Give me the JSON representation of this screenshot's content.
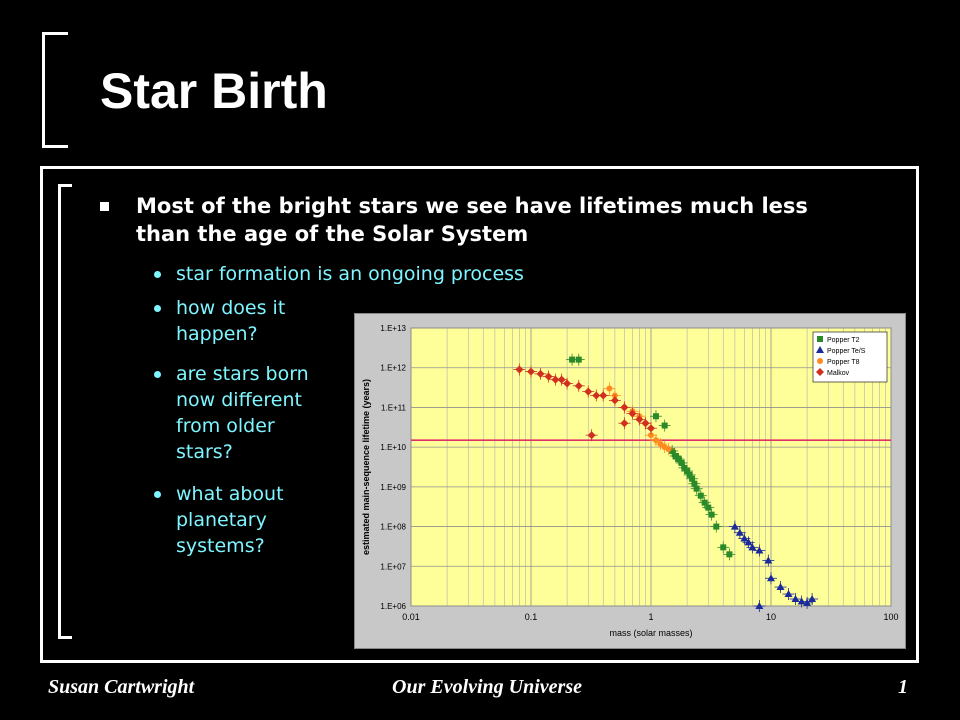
{
  "slide": {
    "title": "Star Birth",
    "bullet": "Most of the bright stars we see have lifetimes much less than the age of the Solar System",
    "sub_bullets": [
      "star formation is an ongoing process",
      "how does it happen?",
      "are stars born now different from older stars?",
      "what about planetary systems?"
    ],
    "footer": {
      "author": "Susan Cartwright",
      "course": "Our Evolving Universe",
      "page": "1"
    }
  },
  "chart_data": {
    "type": "scatter",
    "xlabel": "mass (solar masses)",
    "ylabel": "estimated main-sequence lifetime (years)",
    "x_scale": "log",
    "y_scale": "log",
    "xlim": [
      0.01,
      100
    ],
    "ylim": [
      1000000,
      10000000000000
    ],
    "x_ticks": [
      "0.01",
      "0.1",
      "1",
      "10",
      "100"
    ],
    "y_ticks": [
      "1.E+06",
      "1.E+07",
      "1.E+08",
      "1.E+09",
      "1.E+10",
      "1.E+11",
      "1.E+12",
      "1.E+13"
    ],
    "grid": true,
    "legend_position": "top-right",
    "reference_line": {
      "y": 15000000000,
      "color": "#e0306a"
    },
    "series": [
      {
        "name": "Popper T2",
        "color": "#2a8a2a",
        "marker": "square",
        "points": [
          [
            0.22,
            1600000000000.0
          ],
          [
            0.25,
            1600000000000.0
          ],
          [
            1.1,
            60000000000.0
          ],
          [
            1.3,
            35000000000.0
          ],
          [
            1.5,
            8000000000.0
          ],
          [
            1.6,
            6000000000.0
          ],
          [
            1.7,
            5000000000.0
          ],
          [
            1.8,
            4000000000.0
          ],
          [
            1.9,
            3000000000.0
          ],
          [
            2.0,
            2500000000.0
          ],
          [
            2.1,
            2000000000.0
          ],
          [
            2.2,
            1600000000.0
          ],
          [
            2.3,
            1200000000.0
          ],
          [
            2.4,
            900000000.0
          ],
          [
            2.6,
            600000000.0
          ],
          [
            2.8,
            400000000.0
          ],
          [
            3.0,
            300000000.0
          ],
          [
            3.2,
            200000000.0
          ],
          [
            3.5,
            100000000.0
          ],
          [
            4.0,
            30000000.0
          ],
          [
            4.5,
            20000000.0
          ]
        ]
      },
      {
        "name": "Popper Te/S",
        "color": "#1a2a9a",
        "marker": "triangle",
        "points": [
          [
            5.0,
            100000000.0
          ],
          [
            5.5,
            70000000.0
          ],
          [
            6.0,
            50000000.0
          ],
          [
            6.5,
            40000000.0
          ],
          [
            7.0,
            30000000.0
          ],
          [
            8.0,
            25000000.0
          ],
          [
            9.5,
            14000000.0
          ],
          [
            10,
            5000000.0
          ],
          [
            12,
            3000000.0
          ],
          [
            14,
            2000000.0
          ],
          [
            16,
            1500000.0
          ],
          [
            18,
            1300000.0
          ],
          [
            20,
            1200000.0
          ],
          [
            22,
            1500000.0
          ],
          [
            8.0,
            1000000.0
          ]
        ]
      },
      {
        "name": "Popper T8",
        "color": "#ff8a20",
        "marker": "circle",
        "points": [
          [
            0.45,
            300000000000.0
          ],
          [
            0.5,
            200000000000.0
          ],
          [
            0.6,
            100000000000.0
          ],
          [
            0.7,
            80000000000.0
          ],
          [
            0.8,
            60000000000.0
          ],
          [
            0.9,
            40000000000.0
          ],
          [
            1.0,
            20000000000.0
          ],
          [
            1.1,
            15000000000.0
          ],
          [
            1.2,
            12000000000.0
          ],
          [
            1.3,
            10000000000.0
          ],
          [
            1.4,
            9000000000.0
          ]
        ]
      },
      {
        "name": "Malkov",
        "color": "#d03020",
        "marker": "diamond",
        "points": [
          [
            0.08,
            900000000000.0
          ],
          [
            0.1,
            800000000000.0
          ],
          [
            0.12,
            700000000000.0
          ],
          [
            0.14,
            600000000000.0
          ],
          [
            0.16,
            500000000000.0
          ],
          [
            0.18,
            500000000000.0
          ],
          [
            0.2,
            400000000000.0
          ],
          [
            0.25,
            350000000000.0
          ],
          [
            0.3,
            250000000000.0
          ],
          [
            0.35,
            200000000000.0
          ],
          [
            0.4,
            200000000000.0
          ],
          [
            0.5,
            150000000000.0
          ],
          [
            0.6,
            100000000000.0
          ],
          [
            0.7,
            70000000000.0
          ],
          [
            0.8,
            50000000000.0
          ],
          [
            0.9,
            40000000000.0
          ],
          [
            0.32,
            20000000000.0
          ],
          [
            0.6,
            40000000000.0
          ],
          [
            1.0,
            30000000000.0
          ]
        ]
      }
    ]
  }
}
